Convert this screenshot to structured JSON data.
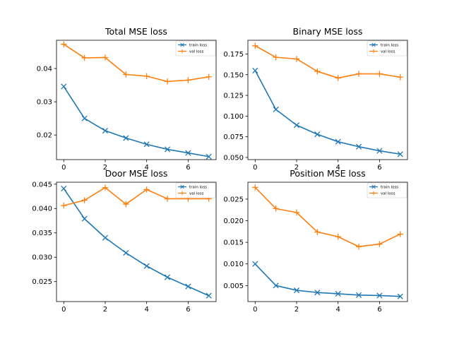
{
  "colors": {
    "train": "#1f77b4",
    "val": "#ff7f0e"
  },
  "chart_data": [
    {
      "type": "line",
      "title": "Total MSE loss",
      "x": [
        0,
        1,
        2,
        3,
        4,
        5,
        6,
        7
      ],
      "xticks": [
        0,
        2,
        4,
        6
      ],
      "xlim": [
        -0.35,
        7.35
      ],
      "ylim": [
        0.0126,
        0.0485
      ],
      "yticks": [
        0.02,
        0.03,
        0.04
      ],
      "ytick_labels": [
        "0.02",
        "0.03",
        "0.04"
      ],
      "legend": "top-right",
      "series": [
        {
          "name": "train loss",
          "marker": "x",
          "values": [
            0.0346,
            0.025,
            0.0213,
            0.0191,
            0.0172,
            0.0157,
            0.0146,
            0.0135
          ]
        },
        {
          "name": "val loss",
          "marker": "+",
          "values": [
            0.0473,
            0.0432,
            0.0433,
            0.0382,
            0.0377,
            0.0361,
            0.0365,
            0.0375
          ]
        }
      ]
    },
    {
      "type": "line",
      "title": "Binary MSE loss",
      "x": [
        0,
        1,
        2,
        3,
        4,
        5,
        6,
        7
      ],
      "xticks": [
        0,
        2,
        4,
        6
      ],
      "xlim": [
        -0.35,
        7.35
      ],
      "ylim": [
        0.0474,
        0.1916
      ],
      "yticks": [
        0.05,
        0.075,
        0.1,
        0.125,
        0.15,
        0.175
      ],
      "ytick_labels": [
        "0.050",
        "0.075",
        "0.100",
        "0.125",
        "0.150",
        "0.175"
      ],
      "legend": "top-right",
      "series": [
        {
          "name": "train loss",
          "marker": "x",
          "values": [
            0.155,
            0.108,
            0.089,
            0.078,
            0.069,
            0.063,
            0.058,
            0.054
          ]
        },
        {
          "name": "val loss",
          "marker": "+",
          "values": [
            0.185,
            0.171,
            0.169,
            0.154,
            0.146,
            0.151,
            0.151,
            0.147
          ]
        }
      ]
    },
    {
      "type": "line",
      "title": "Door MSE loss",
      "x": [
        0,
        1,
        2,
        3,
        4,
        5,
        6,
        7
      ],
      "xticks": [
        0,
        2,
        4,
        6
      ],
      "xlim": [
        -0.35,
        7.35
      ],
      "ylim": [
        0.0209,
        0.0454
      ],
      "yticks": [
        0.025,
        0.03,
        0.035,
        0.04,
        0.045
      ],
      "ytick_labels": [
        "0.025",
        "0.030",
        "0.035",
        "0.040",
        "0.045"
      ],
      "legend": "top-right",
      "series": [
        {
          "name": "train loss",
          "marker": "x",
          "values": [
            0.0441,
            0.0379,
            0.034,
            0.0309,
            0.0282,
            0.0259,
            0.024,
            0.0221
          ]
        },
        {
          "name": "val loss",
          "marker": "+",
          "values": [
            0.0406,
            0.0417,
            0.0443,
            0.0409,
            0.0439,
            0.042,
            0.042,
            0.042
          ]
        }
      ]
    },
    {
      "type": "line",
      "title": "Position MSE loss",
      "x": [
        0,
        1,
        2,
        3,
        4,
        5,
        6,
        7
      ],
      "xticks": [
        0,
        2,
        4,
        6
      ],
      "xlim": [
        -0.35,
        7.35
      ],
      "ylim": [
        0.0013,
        0.0289
      ],
      "yticks": [
        0.005,
        0.01,
        0.015,
        0.02,
        0.025
      ],
      "ytick_labels": [
        "0.005",
        "0.010",
        "0.015",
        "0.020",
        "0.025"
      ],
      "legend": "top-right",
      "series": [
        {
          "name": "train loss",
          "marker": "x",
          "values": [
            0.01,
            0.005,
            0.0039,
            0.0034,
            0.0031,
            0.0028,
            0.0027,
            0.0025
          ]
        },
        {
          "name": "val loss",
          "marker": "+",
          "values": [
            0.0277,
            0.0228,
            0.0219,
            0.0174,
            0.0163,
            0.014,
            0.0146,
            0.0169
          ]
        }
      ]
    }
  ]
}
